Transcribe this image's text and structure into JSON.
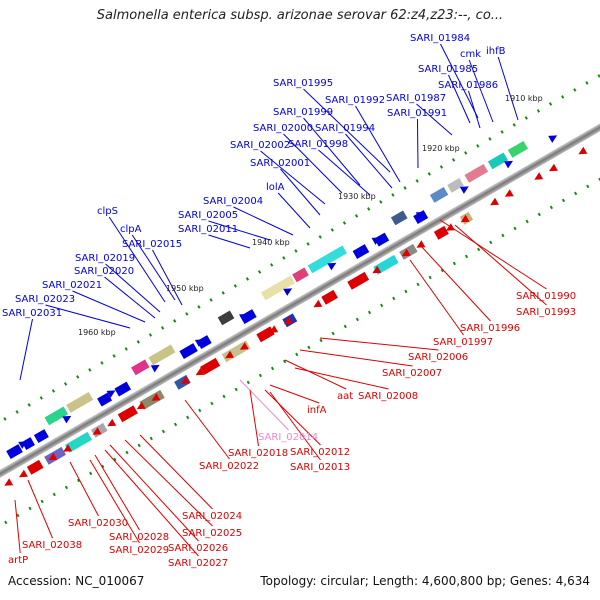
{
  "title": "Salmonella enterica subsp. arizonae serovar 62:z4,z23:--, co...",
  "footer": {
    "accession": "Accession: NC_010067",
    "summary": "Topology: circular; Length: 4,600,800 bp; Genes: 4,634"
  },
  "colors": {
    "upper_strand": "#0000dd",
    "lower_strand": "#dd0000",
    "pseudogene": "#ee88cc",
    "backbone": "#888888"
  },
  "kbp_ticks": [
    "1910 kbp",
    "1920 kbp",
    "1930 kbp",
    "1940 kbp",
    "1950 kbp",
    "1960 kbp"
  ],
  "upper_labels": [
    "SARI_01984",
    "cmk",
    "ihfB",
    "SARI_01985",
    "SARI_01986",
    "SARI_01987",
    "SARI_01995",
    "SARI_01992",
    "SARI_01991",
    "SARI_01999",
    "SARI_01994",
    "SARI_02000",
    "SARI_02002",
    "SARI_01998",
    "SARI_02001",
    "lolA",
    "SARI_02004",
    "SARI_02005",
    "clpS",
    "SARI_02011",
    "clpA",
    "SARI_02015",
    "SARI_02019",
    "SARI_02020",
    "SARI_02021",
    "SARI_02023",
    "SARI_02031"
  ],
  "lower_labels": [
    "SARI_01990",
    "SARI_01993",
    "SARI_01996",
    "SARI_01997",
    "SARI_02006",
    "SARI_02007",
    "aat",
    "SARI_02008",
    "infA",
    "SARI_02014",
    "SARI_02018",
    "SARI_02012",
    "SARI_02013",
    "SARI_02022",
    "SARI_02024",
    "SARI_02025",
    "SARI_02026",
    "SARI_02027",
    "SARI_02028",
    "SARI_02029",
    "SARI_02030",
    "SARI_02038",
    "artP"
  ]
}
